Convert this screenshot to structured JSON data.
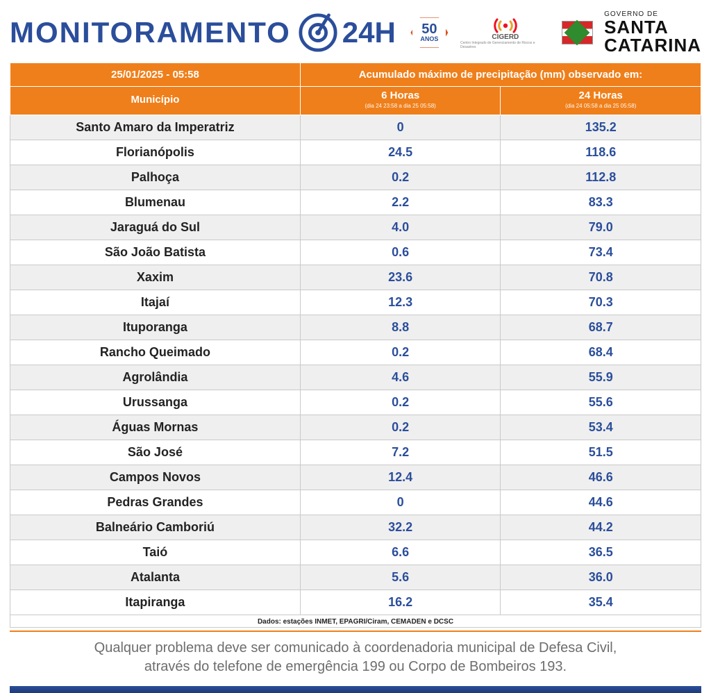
{
  "header": {
    "monitor_word": "MONITORAMENTO",
    "h24": "24H",
    "logo50_big": "50",
    "logo50_small": "ANOS",
    "cigerd_label": "CIGERD",
    "cigerd_sub": "Centro Integrado de Gerenciamento de Riscos e Desastres",
    "gov_small": "GOVERNO DE",
    "gov_line1": "SANTA",
    "gov_line2": "CATARINA"
  },
  "colors": {
    "header_bg": "#ef7f1a",
    "header_text": "#ffffff",
    "value_text": "#2b4e9b",
    "brand_blue": "#2b4e9b",
    "row_alt_bg": "#efefef",
    "row_bg": "#ffffff",
    "grid": "#c9c9c9",
    "footer_text": "#6d6d6d"
  },
  "table": {
    "timestamp": "25/01/2025 - 05:58",
    "accum_title": "Acumulado máximo de precipitação (mm) observado em:",
    "col_municipio": "Município",
    "col_6h": "6 Horas",
    "col_6h_sub": "(dia 24 23:58 a dia 25 05:58)",
    "col_24h": "24 Horas",
    "col_24h_sub": "(dia 24 05:58 a dia 25 05:58)",
    "col_widths_pct": [
      42,
      29,
      29
    ],
    "rows": [
      {
        "mun": "Santo Amaro da Imperatriz",
        "h6": "0",
        "h24": "135.2"
      },
      {
        "mun": "Florianópolis",
        "h6": "24.5",
        "h24": "118.6"
      },
      {
        "mun": "Palhoça",
        "h6": "0.2",
        "h24": "112.8"
      },
      {
        "mun": "Blumenau",
        "h6": "2.2",
        "h24": "83.3"
      },
      {
        "mun": "Jaraguá do Sul",
        "h6": "4.0",
        "h24": "79.0"
      },
      {
        "mun": "São João Batista",
        "h6": "0.6",
        "h24": "73.4"
      },
      {
        "mun": "Xaxim",
        "h6": "23.6",
        "h24": "70.8"
      },
      {
        "mun": "Itajaí",
        "h6": "12.3",
        "h24": "70.3"
      },
      {
        "mun": "Ituporanga",
        "h6": "8.8",
        "h24": "68.7"
      },
      {
        "mun": "Rancho Queimado",
        "h6": "0.2",
        "h24": "68.4"
      },
      {
        "mun": "Agrolândia",
        "h6": "4.6",
        "h24": "55.9"
      },
      {
        "mun": "Urussanga",
        "h6": "0.2",
        "h24": "55.6"
      },
      {
        "mun": "Águas Mornas",
        "h6": "0.2",
        "h24": "53.4"
      },
      {
        "mun": "São José",
        "h6": "7.2",
        "h24": "51.5"
      },
      {
        "mun": "Campos Novos",
        "h6": "12.4",
        "h24": "46.6"
      },
      {
        "mun": "Pedras Grandes",
        "h6": "0",
        "h24": "44.6"
      },
      {
        "mun": "Balneário Camboriú",
        "h6": "32.2",
        "h24": "44.2"
      },
      {
        "mun": "Taió",
        "h6": "6.6",
        "h24": "36.5"
      },
      {
        "mun": "Atalanta",
        "h6": "5.6",
        "h24": "36.0"
      },
      {
        "mun": "Itapiranga",
        "h6": "16.2",
        "h24": "35.4"
      }
    ],
    "sources": "Dados: estações INMET, EPAGRI/Ciram, CEMADEN e DCSC"
  },
  "footer": {
    "line1": "Qualquer problema deve ser comunicado à coordenadoria municipal de Defesa Civil,",
    "line2": "através do telefone de emergência 199 ou Corpo de Bombeiros 193."
  }
}
